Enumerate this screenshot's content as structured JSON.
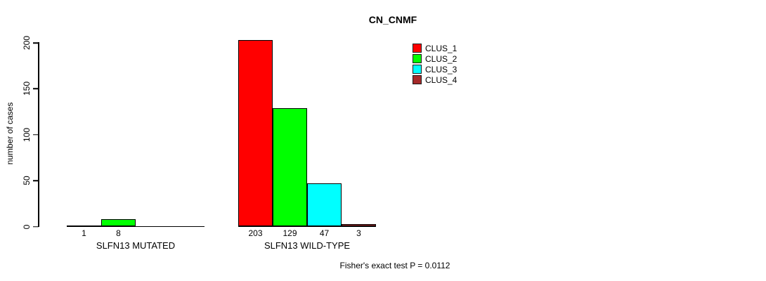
{
  "title": "CN_CNMF",
  "footer": "Fisher's exact test P = 0.0112",
  "chart_data": {
    "type": "bar",
    "title": "CN_CNMF",
    "xlabel": "",
    "ylabel": "number of cases",
    "categories": [
      "SLFN13 MUTATED",
      "SLFN13 WILD-TYPE"
    ],
    "series": [
      {
        "name": "CLUS_1",
        "color": "#FF0000",
        "values": [
          1,
          203
        ]
      },
      {
        "name": "CLUS_2",
        "color": "#00FF00",
        "values": [
          8,
          129
        ]
      },
      {
        "name": "CLUS_3",
        "color": "#00FFFF",
        "values": [
          0,
          47
        ]
      },
      {
        "name": "CLUS_4",
        "color": "#A52A2A",
        "values": [
          0,
          3
        ]
      }
    ],
    "bar_value_labels": [
      [
        "1",
        "8"
      ],
      [
        "203",
        "129",
        "47",
        "3"
      ]
    ],
    "value_labels_shown_for_zero": false,
    "yticks": [
      0,
      50,
      100,
      150,
      200
    ],
    "ylim": [
      0,
      207
    ],
    "grid": false,
    "legend_position": "inside-top-right-of-center",
    "annotation": "Fisher's exact test P = 0.0112"
  }
}
